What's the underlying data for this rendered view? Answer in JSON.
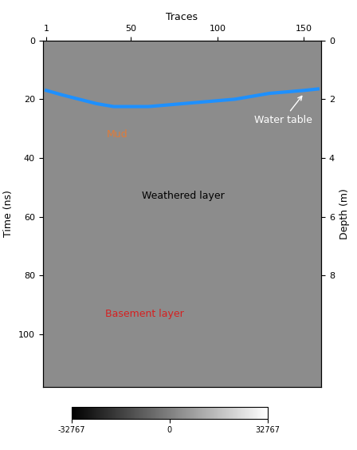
{
  "chart_data": {
    "type": "radargram",
    "x_label": "Traces",
    "y_label": "Time (ns)",
    "y2_label": "Depth (m)",
    "xlim": [
      -1,
      160
    ],
    "xticks": [
      1,
      50,
      100,
      150
    ],
    "ylim": [
      0,
      118
    ],
    "yticks": [
      0,
      20,
      40,
      60,
      80,
      100
    ],
    "y2lim": [
      0,
      11.8
    ],
    "y2ticks": [
      0,
      2,
      4,
      6,
      8
    ],
    "series": [
      {
        "name": "Water table",
        "color": "#1e90ff",
        "x": [
          1,
          10,
          20,
          30,
          40,
          50,
          60,
          70,
          80,
          90,
          100,
          110,
          120,
          130,
          140,
          150,
          158
        ],
        "values": [
          17,
          18.5,
          20,
          21.5,
          22.5,
          22.5,
          22.5,
          22,
          21.5,
          21,
          20.5,
          20,
          19,
          18,
          17.5,
          17,
          16.5
        ]
      }
    ],
    "annotations": [
      {
        "text": "Mud",
        "color": "#e07b39"
      },
      {
        "text": "Weathered layer",
        "color": "#000000"
      },
      {
        "text": "Basement layer",
        "color": "#d62020"
      }
    ],
    "colorbar": {
      "range": [
        -32767,
        32767
      ],
      "ticks": [
        -32767,
        0,
        32767
      ]
    }
  }
}
